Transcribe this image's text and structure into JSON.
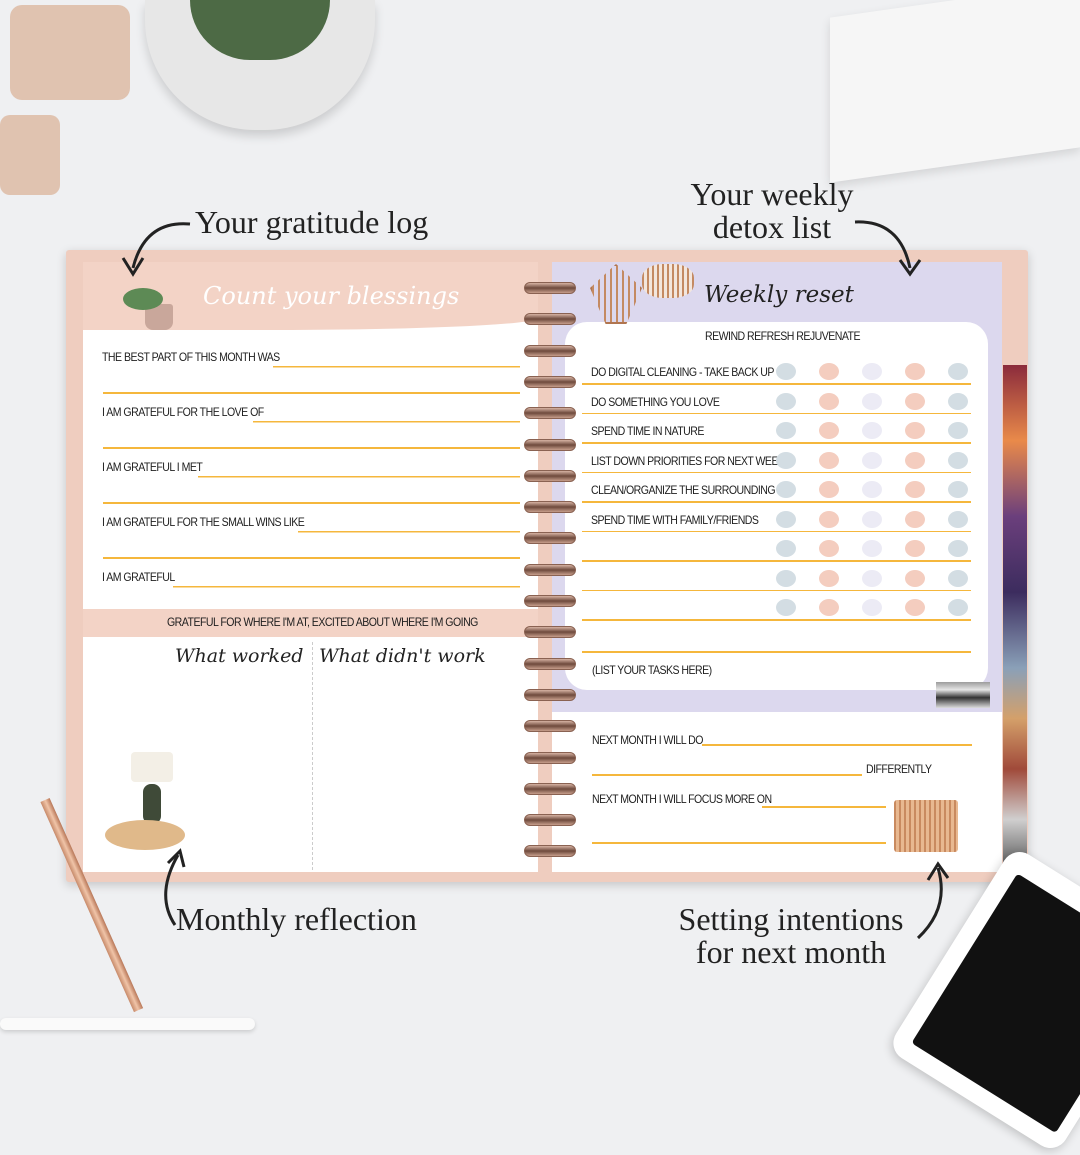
{
  "annotations": {
    "gratitude": "Your gratitude log",
    "detox_line1": "Your weekly",
    "detox_line2": "detox list",
    "reflection": "Monthly reflection",
    "intentions_line1": "Setting intentions",
    "intentions_line2": "for next month"
  },
  "left_page": {
    "title": "Count your blessings",
    "prompts": [
      "THE BEST PART OF THIS MONTH WAS",
      "I AM GRATEFUL FOR THE LOVE OF",
      "I AM GRATEFUL I MET",
      "I AM GRATEFUL FOR THE SMALL WINS LIKE",
      "I AM GRATEFUL"
    ],
    "banner": "GRATEFUL FOR WHERE I'M AT, EXCITED ABOUT WHERE I'M GOING",
    "col1": "What worked",
    "col2": "What didn't work"
  },
  "right_page": {
    "title": "Weekly reset",
    "subtitle": "REWIND REFRESH REJUVENATE",
    "tasks": [
      "DO DIGITAL CLEANING - TAKE BACK UP",
      "DO SOMETHING YOU LOVE",
      "SPEND TIME IN NATURE",
      "LIST DOWN PRIORITIES FOR NEXT WEEK",
      "CLEAN/ORGANIZE THE SURROUNDING",
      "SPEND TIME WITH FAMILY/FRIENDS",
      "",
      "",
      ""
    ],
    "tasks_note": "(LIST YOUR TASKS HERE)",
    "next_do": "NEXT MONTH I WILL DO",
    "differently": "DIFFERENTLY",
    "next_focus": "NEXT MONTH I WILL FOCUS MORE ON"
  },
  "colors": {
    "background": "#eff0f2",
    "cover": "#efcdbf",
    "left_accent": "#f3d3c6",
    "right_accent": "#dcd8ee",
    "line": "#f5b73c",
    "dots": [
      "#d3dde3",
      "#f4cdbf",
      "#ecebf5",
      "#f4cdbf",
      "#d3dde3"
    ]
  }
}
